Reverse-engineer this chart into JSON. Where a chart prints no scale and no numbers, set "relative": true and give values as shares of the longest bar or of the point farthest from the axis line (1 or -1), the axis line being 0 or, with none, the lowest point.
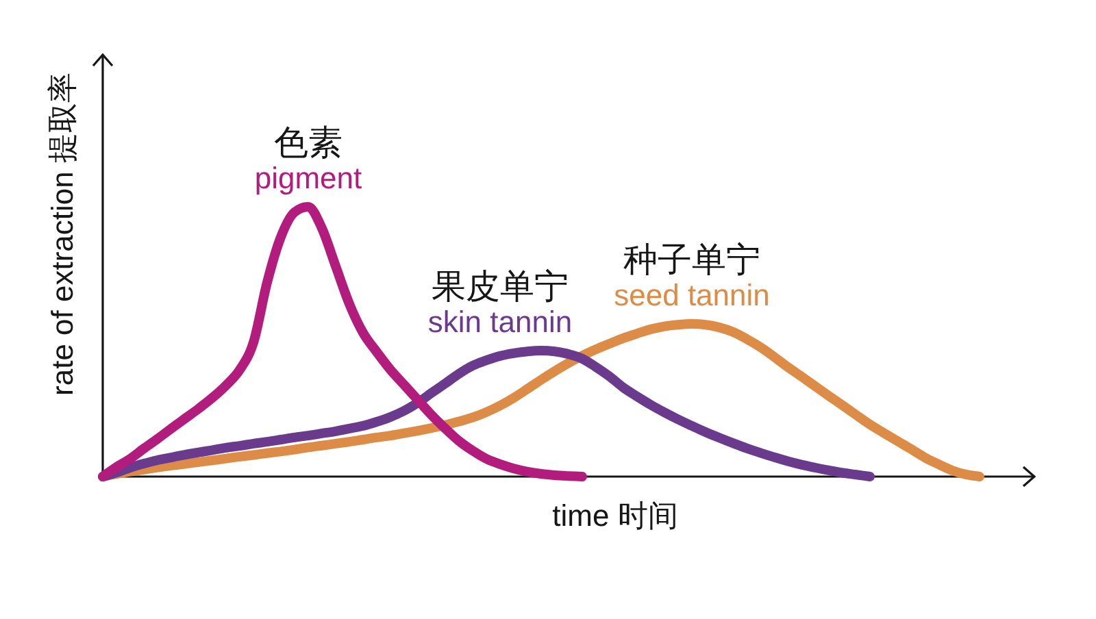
{
  "chart_data": {
    "type": "line",
    "relative": true,
    "xlabel": "time 时间",
    "ylabel": "rate of extraction 提取率",
    "categories": [
      null,
      null,
      null,
      null,
      null,
      null,
      null,
      null,
      null,
      null,
      null,
      null,
      null,
      null,
      null,
      null,
      null,
      null,
      null,
      null,
      null,
      null,
      null,
      null,
      null,
      null,
      null,
      null,
      null,
      null,
      null,
      null,
      null,
      null,
      null,
      null,
      null,
      null,
      null,
      null,
      null,
      null,
      null,
      null,
      null,
      null,
      null,
      null,
      null,
      null,
      null,
      null,
      null,
      null,
      null,
      null,
      null,
      null,
      null,
      null,
      null,
      null,
      null,
      null,
      null
    ],
    "series": [
      {
        "name": "色素\npigment",
        "color": "#b21c7d",
        "values": [
          0,
          0.035,
          0.066,
          0.104,
          0.14,
          0.178,
          0.215,
          0.252,
          0.292,
          0.338,
          0.396,
          0.497,
          0.72,
          0.888,
          0.98,
          1,
          0.92,
          0.78,
          0.64,
          0.533,
          0.462,
          0.396,
          0.34,
          0.284,
          0.228,
          0.178,
          0.132,
          0.096,
          0.066,
          0.046,
          0.03,
          0.018,
          0.01,
          0.005,
          0.002,
          0,
          null,
          null,
          null,
          null,
          null,
          null,
          null,
          null,
          null,
          null,
          null,
          null,
          null,
          null,
          null,
          null,
          null,
          null,
          null,
          null,
          null,
          null,
          null,
          null,
          null,
          null,
          null,
          null,
          null
        ]
      },
      {
        "name": "果皮单宁\nskin tannin",
        "color": "#6a3a8c",
        "values": [
          0,
          0.015,
          0.033,
          0.048,
          0.061,
          0.071,
          0.081,
          0.09,
          0.098,
          0.107,
          0.114,
          0.122,
          0.129,
          0.137,
          0.145,
          0.152,
          0.16,
          0.168,
          0.178,
          0.188,
          0.203,
          0.221,
          0.244,
          0.274,
          0.31,
          0.345,
          0.381,
          0.411,
          0.431,
          0.447,
          0.457,
          0.464,
          0.467,
          0.464,
          0.454,
          0.437,
          0.406,
          0.371,
          0.33,
          0.297,
          0.266,
          0.238,
          0.212,
          0.188,
          0.165,
          0.144,
          0.124,
          0.105,
          0.088,
          0.072,
          0.057,
          0.044,
          0.033,
          0.023,
          0.014,
          0.007,
          0,
          null,
          null,
          null,
          null,
          null,
          null,
          null,
          null
        ]
      },
      {
        "name": "种子单宁\nseed tannin",
        "color": "#dc8c46",
        "values": [
          0,
          0.01,
          0.019,
          0.026,
          0.034,
          0.041,
          0.047,
          0.054,
          0.06,
          0.067,
          0.074,
          0.08,
          0.087,
          0.093,
          0.1,
          0.108,
          0.115,
          0.122,
          0.129,
          0.137,
          0.145,
          0.152,
          0.161,
          0.17,
          0.18,
          0.191,
          0.204,
          0.219,
          0.239,
          0.263,
          0.292,
          0.325,
          0.359,
          0.391,
          0.421,
          0.448,
          0.472,
          0.493,
          0.513,
          0.53,
          0.546,
          0.557,
          0.563,
          0.566,
          0.563,
          0.553,
          0.536,
          0.51,
          0.48,
          0.444,
          0.406,
          0.371,
          0.335,
          0.299,
          0.264,
          0.228,
          0.193,
          0.162,
          0.132,
          0.102,
          0.071,
          0.046,
          0.023,
          0.008,
          0
        ]
      }
    ]
  }
}
